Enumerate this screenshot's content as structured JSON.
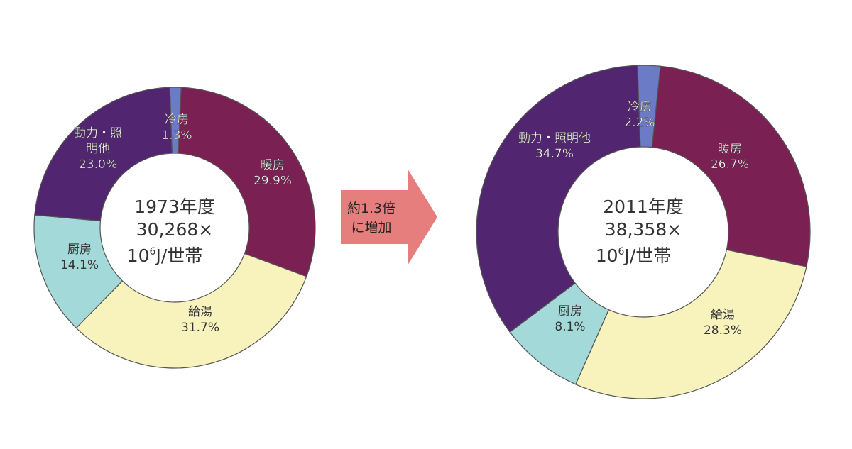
{
  "arrow": {
    "line1": "約1.3倍",
    "line2": "に増加",
    "color": "#e57e7c"
  },
  "chart_data": [
    {
      "type": "pie",
      "donut": true,
      "center_lines": [
        "1973年度",
        "30,268×",
        "10",
        "6",
        "J/世帯"
      ],
      "categories": [
        "冷房",
        "暖房",
        "給湯",
        "厨房",
        "動力・照明他"
      ],
      "label_lines": [
        [
          "冷房",
          "1.3%"
        ],
        [
          "暖房",
          "29.9%"
        ],
        [
          "給湯",
          "31.7%"
        ],
        [
          "厨房",
          "14.1%"
        ],
        [
          "動力・照",
          "明他",
          "23.0%"
        ]
      ],
      "values": [
        1.3,
        29.9,
        31.7,
        14.1,
        23.0
      ],
      "colors": [
        "#6b7bc6",
        "#7a2052",
        "#f8f3bd",
        "#a3dad9",
        "#51256f"
      ]
    },
    {
      "type": "pie",
      "donut": true,
      "center_lines": [
        "2011年度",
        "38,358×",
        "10",
        "6",
        "J/世帯"
      ],
      "categories": [
        "冷房",
        "暖房",
        "給湯",
        "厨房",
        "動力・照明他"
      ],
      "label_lines": [
        [
          "冷房",
          "2.2%"
        ],
        [
          "暖房",
          "26.7%"
        ],
        [
          "給湯",
          "28.3%"
        ],
        [
          "厨房",
          "8.1%"
        ],
        [
          "動力・照明他",
          "34.7%"
        ]
      ],
      "values": [
        2.2,
        26.7,
        28.3,
        8.1,
        34.7
      ],
      "colors": [
        "#6b7bc6",
        "#7a2052",
        "#f8f3bd",
        "#a3dad9",
        "#51256f"
      ]
    }
  ]
}
